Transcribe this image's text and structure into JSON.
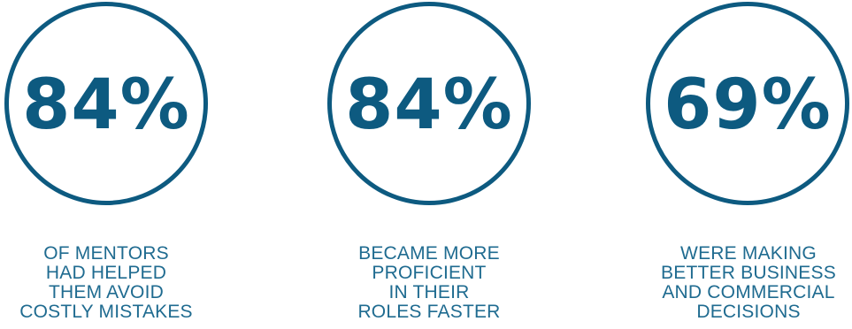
{
  "stats": [
    {
      "value": "84%",
      "caption_lines": [
        "OF MENTORS",
        "HAD HELPED",
        "THEM AVOID",
        "COSTLY MISTAKES"
      ]
    },
    {
      "value": "84%",
      "caption_lines": [
        "BECAME MORE",
        "PROFICIENT",
        "IN THEIR",
        "ROLES FASTER"
      ]
    },
    {
      "value": "69%",
      "caption_lines": [
        "WERE MAKING",
        "BETTER BUSINESS",
        "AND COMMERCIAL",
        "DECISIONS"
      ]
    }
  ],
  "colors": {
    "accent": "#0d5a80",
    "caption": "#1f6b90",
    "background": "#ffffff"
  }
}
